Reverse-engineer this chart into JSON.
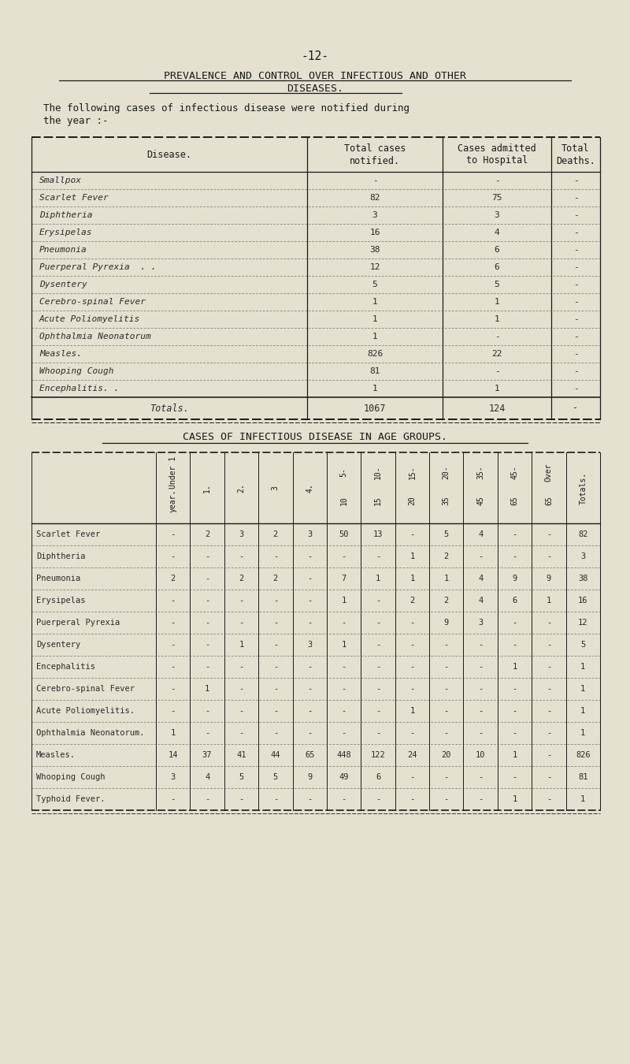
{
  "bg_color": "#e5e0d0",
  "page_num": "-12-",
  "title_line1": "PREVALENCE AND CONTROL OVER INFECTIOUS AND OTHER",
  "title_line2": "DISEASES.",
  "intro1": "The following cases of infectious disease were notified during",
  "intro2": "the year :-",
  "table1_rows": [
    [
      "Smallpox",
      "-",
      "-",
      "-"
    ],
    [
      "Scarlet Fever",
      "82",
      "75",
      "-"
    ],
    [
      "Diphtheria",
      "3",
      "3",
      "-"
    ],
    [
      "Erysipelas",
      "16",
      "4",
      "-"
    ],
    [
      "Pneumonia",
      "38",
      "6",
      "-"
    ],
    [
      "Puerperal Pyrexia  . .",
      "12",
      "6",
      "-"
    ],
    [
      "Dysentery",
      "5",
      "5",
      "-"
    ],
    [
      "Cerebro-spinal Fever",
      "1",
      "1",
      "-"
    ],
    [
      "Acute Poliomyelitis",
      "1",
      "1",
      "-"
    ],
    [
      "Ophthalmia Neonatorum",
      "1",
      "-",
      "-"
    ],
    [
      "Measles.",
      "826",
      "22",
      "-"
    ],
    [
      "Whooping Cough",
      "81",
      "-",
      "-"
    ],
    [
      "Encephalitis. .",
      "1",
      "1",
      "-"
    ]
  ],
  "table1_totals": [
    "Totals.",
    "1067",
    "124",
    "-"
  ],
  "table2_title": "CASES OF INFECTIOUS DISEASE IN AGE GROUPS.",
  "table2_col_headers": [
    "Under 1\nyear.",
    "1.",
    "2.",
    "3",
    "4.",
    "5-\n10",
    "10-\n15",
    "15-\n20",
    "20-\n35",
    "35-\n45",
    "45-\n65",
    "Over\n65",
    "Totals."
  ],
  "table2_rows": [
    [
      "Scarlet Fever",
      "-",
      "2",
      "3",
      "2",
      "3",
      "50",
      "13",
      "-",
      "5",
      "4",
      "-",
      "-",
      "82"
    ],
    [
      "Diphtheria",
      "-",
      "-",
      "-",
      "-",
      "-",
      "-",
      "-",
      "1",
      "2",
      "-",
      "-",
      "-",
      "3"
    ],
    [
      "Pneumonia",
      "2",
      "-",
      "2",
      "2",
      "-",
      "7",
      "1",
      "1",
      "1",
      "4",
      "9",
      "9",
      "38"
    ],
    [
      "Erysipelas",
      "-",
      "-",
      "-",
      "-",
      "-",
      "1",
      "-",
      "2",
      "2",
      "4",
      "6",
      "1",
      "16"
    ],
    [
      "Puerperal Pyrexia",
      "-",
      "-",
      "-",
      "-",
      "-",
      "-",
      "-",
      "-",
      "9",
      "3",
      "-",
      "-",
      "12"
    ],
    [
      "Dysentery",
      "-",
      "-",
      "1",
      "-",
      "3",
      "1",
      "-",
      "-",
      "-",
      "-",
      "-",
      "-",
      "5"
    ],
    [
      "Encephalitis",
      "-",
      "-",
      "-",
      "-",
      "-",
      "-",
      "-",
      "-",
      "-",
      "-",
      "1",
      "-",
      "1"
    ],
    [
      "Cerebro-spinal Fever",
      "-",
      "1",
      "-",
      "-",
      "-",
      "-",
      "-",
      "-",
      "-",
      "-",
      "-",
      "-",
      "1"
    ],
    [
      "Acute Poliomyelitis.",
      "-",
      "-",
      "-",
      "-",
      "-",
      "-",
      "-",
      "1",
      "-",
      "-",
      "-",
      "-",
      "1"
    ],
    [
      "Ophthalmia Neonatorum.",
      "1",
      "-",
      "-",
      "-",
      "-",
      "-",
      "-",
      "-",
      "-",
      "-",
      "-",
      "-",
      "1"
    ],
    [
      "Measles.",
      "14",
      "37",
      "41",
      "44",
      "65",
      "448",
      "122",
      "24",
      "20",
      "10",
      "1",
      "-",
      "826"
    ],
    [
      "Whooping Cough",
      "3",
      "4",
      "5",
      "5",
      "9",
      "49",
      "6",
      "-",
      "-",
      "-",
      "-",
      "-",
      "81"
    ],
    [
      "Typhoid Fever.",
      "-",
      "-",
      "-",
      "-",
      "-",
      "-",
      "-",
      "-",
      "-",
      "-",
      "1",
      "-",
      "1"
    ]
  ]
}
